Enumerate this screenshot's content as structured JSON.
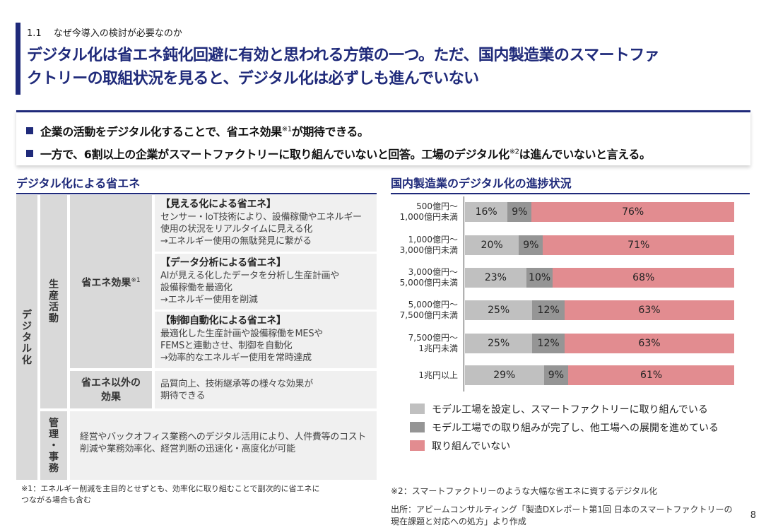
{
  "header": {
    "section_number": "1.1",
    "section_title": "なぜ今導入の検討が必要なのか",
    "headline_line1": "デジタル化は省エネ鈍化回避に有効と思われる方策の一つ。ただ、国内製造業のスマートファ",
    "headline_line2": "クトリーの取組状況を見ると、デジタル化は必ずしも進んでいない"
  },
  "summary": {
    "bullet1_before": "企業の活動をデジタル化することで、省エネ効果",
    "bullet1_sup": "※1",
    "bullet1_after": "が期待できる。",
    "bullet2_before": "一方で、6割以上の企業がスマートファクトリーに取り組んでいないと回答。工場のデジタル化",
    "bullet2_sup": "※2",
    "bullet2_after": "は進んでいないと言える。"
  },
  "left_panel": {
    "title": "デジタル化による省エネ",
    "root_label": "デジタル化",
    "production_label": "生産活動",
    "management_label": "管理・事務",
    "savings_label": "省エネ効果",
    "savings_sup": "※1",
    "other_label_1": "省エネ以外の",
    "other_label_2": "効果",
    "items": [
      {
        "title": "【見える化による省エネ】",
        "lines": [
          "センサー・IoT技術により、設備稼働やエネルギー",
          "使用の状況をリアルタイムに見える化",
          "→エネルギー使用の無駄発見に繋がる"
        ]
      },
      {
        "title": "【データ分析による省エネ】",
        "lines": [
          "AIが見える化したデータを分析し生産計画や",
          "設備稼働を最適化",
          "→エネルギー使用を削減"
        ]
      },
      {
        "title": "【制御自動化による省エネ】",
        "lines": [
          "最適化した生産計画や設備稼働をMESや",
          "FEMSと連動させ、制御を自動化",
          "→効率的なエネルギー使用を常時達成"
        ]
      }
    ],
    "other_effects_lines": [
      "品質向上、技術継承等の様々な効果が",
      "期待できる"
    ],
    "management_lines": [
      "経営やバックオフィス業務へのデジタル活用により、人件費等のコスト",
      "削減や業務効率化、経営判断の迅速化・高度化が可能"
    ],
    "footnote_1": "※1：エネルギー削減を主目的とせずとも、効率化に取り組むことで副次的に省エネに",
    "footnote_2": "つながる場合も含む"
  },
  "right_panel": {
    "title": "国内製造業のデジタル化の進捗状況",
    "footnote": "※2：スマートファクトリーのような大幅な省エネに資するデジタル化",
    "source_1": "出所：アビームコンサルティング「製造DXレポート第1回 日本のスマートファクトリーの",
    "source_2": "現在課題と対応への処方」より作成"
  },
  "chart_data": {
    "type": "bar",
    "orientation": "horizontal",
    "stacked": "100%",
    "categories": [
      [
        "500億円～",
        "1,000億円未満"
      ],
      [
        "1,000億円～",
        "3,000億円未満"
      ],
      [
        "3,000億円～",
        "5,000億円未満"
      ],
      [
        "5,000億円～",
        "7,500億円未満"
      ],
      [
        "7,500億円～",
        "1兆円未満"
      ],
      [
        "1兆円以上"
      ]
    ],
    "series": [
      {
        "name": "モデル工場を設定し、スマートファクトリーに取り組んでいる",
        "color": "#c0c0c0",
        "values": [
          16,
          20,
          23,
          25,
          25,
          29
        ],
        "labels": [
          "16%",
          "20%",
          "23%",
          "25%",
          "25%",
          "29%"
        ]
      },
      {
        "name": "モデル工場での取り組みが完了し、他工場への展開を進めている",
        "color": "#959595",
        "values": [
          9,
          9,
          10,
          12,
          12,
          9
        ],
        "labels": [
          "9%",
          "9%",
          "10%",
          "12%",
          "12%",
          "9%"
        ]
      },
      {
        "name": "取り組んでいない",
        "color": "#e28c90",
        "values": [
          76,
          71,
          68,
          63,
          63,
          61
        ],
        "labels": [
          "76%",
          "71%",
          "68%",
          "63%",
          "63%",
          "61%"
        ]
      }
    ],
    "legend_position": "bottom"
  },
  "page": {
    "number": "8"
  }
}
